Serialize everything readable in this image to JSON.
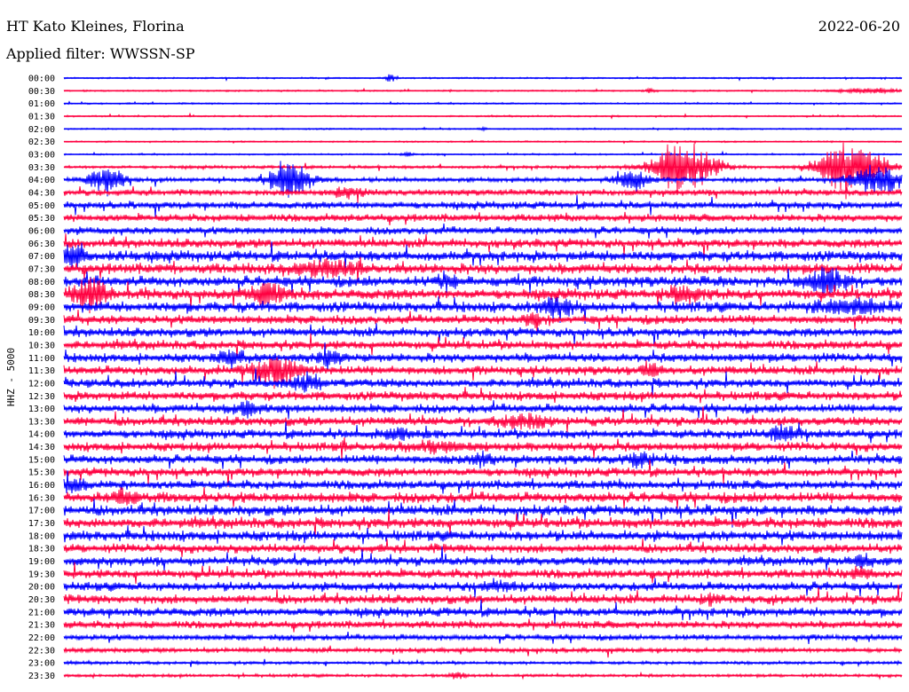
{
  "header": {
    "station": "HT Kato Kleines, Florina",
    "date": "2022-06-20",
    "filter": "Applied filter: WWSSN-SP"
  },
  "chart_data": {
    "type": "helicorder",
    "channel_label": "HHZ - 5000",
    "colors": [
      "#0000ff",
      "#ff0040"
    ],
    "rows": [
      "00:00",
      "00:30",
      "01:00",
      "01:30",
      "02:00",
      "02:30",
      "03:00",
      "03:30",
      "04:00",
      "04:30",
      "05:00",
      "05:30",
      "06:00",
      "06:30",
      "07:00",
      "07:30",
      "08:00",
      "08:30",
      "09:00",
      "09:30",
      "10:00",
      "10:30",
      "11:00",
      "11:30",
      "12:00",
      "12:30",
      "13:00",
      "13:30",
      "14:00",
      "14:30",
      "15:00",
      "15:30",
      "16:00",
      "16:30",
      "17:00",
      "17:30",
      "18:00",
      "18:30",
      "19:00",
      "19:30",
      "20:00",
      "20:30",
      "21:00",
      "21:30",
      "22:00",
      "22:30",
      "23:00",
      "23:30"
    ],
    "noise_level": [
      1,
      1,
      1,
      1,
      1,
      1,
      1,
      2,
      3,
      4,
      5,
      5,
      5,
      6,
      7,
      7,
      7,
      7,
      7,
      6,
      6,
      6,
      6,
      6,
      6,
      6,
      6,
      6,
      6,
      6,
      6,
      6,
      6,
      7,
      7,
      7,
      7,
      6,
      6,
      6,
      6,
      6,
      6,
      5,
      4,
      3,
      2,
      2
    ],
    "events": [
      {
        "row": 0,
        "t": 0.39,
        "amp": 5,
        "dur": 0.006
      },
      {
        "row": 1,
        "t": 0.7,
        "amp": 3,
        "dur": 0.005
      },
      {
        "row": 1,
        "t": 0.96,
        "amp": 3,
        "dur": 0.04
      },
      {
        "row": 4,
        "t": 0.5,
        "amp": 2,
        "dur": 0.004
      },
      {
        "row": 6,
        "t": 0.41,
        "amp": 3,
        "dur": 0.006
      },
      {
        "row": 7,
        "t": 0.74,
        "amp": 35,
        "dur": 0.035
      },
      {
        "row": 7,
        "t": 0.94,
        "amp": 38,
        "dur": 0.035
      },
      {
        "row": 8,
        "t": 0.05,
        "amp": 18,
        "dur": 0.02
      },
      {
        "row": 8,
        "t": 0.27,
        "amp": 22,
        "dur": 0.025
      },
      {
        "row": 8,
        "t": 0.68,
        "amp": 14,
        "dur": 0.02
      },
      {
        "row": 8,
        "t": 0.97,
        "amp": 20,
        "dur": 0.03
      },
      {
        "row": 9,
        "t": 0.34,
        "amp": 7,
        "dur": 0.02
      },
      {
        "row": 14,
        "t": 0.01,
        "amp": 14,
        "dur": 0.015
      },
      {
        "row": 15,
        "t": 0.31,
        "amp": 9,
        "dur": 0.03
      },
      {
        "row": 16,
        "t": 0.46,
        "amp": 12,
        "dur": 0.01
      },
      {
        "row": 16,
        "t": 0.91,
        "amp": 16,
        "dur": 0.02
      },
      {
        "row": 17,
        "t": 0.03,
        "amp": 22,
        "dur": 0.02
      },
      {
        "row": 17,
        "t": 0.24,
        "amp": 14,
        "dur": 0.02
      },
      {
        "row": 17,
        "t": 0.74,
        "amp": 8,
        "dur": 0.02
      },
      {
        "row": 18,
        "t": 0.59,
        "amp": 11,
        "dur": 0.02
      },
      {
        "row": 18,
        "t": 0.94,
        "amp": 9,
        "dur": 0.04
      },
      {
        "row": 19,
        "t": 0.56,
        "amp": 8,
        "dur": 0.01
      },
      {
        "row": 22,
        "t": 0.2,
        "amp": 9,
        "dur": 0.015
      },
      {
        "row": 22,
        "t": 0.32,
        "amp": 6,
        "dur": 0.015
      },
      {
        "row": 23,
        "t": 0.25,
        "amp": 20,
        "dur": 0.025
      },
      {
        "row": 23,
        "t": 0.7,
        "amp": 7,
        "dur": 0.01
      },
      {
        "row": 24,
        "t": 0.29,
        "amp": 11,
        "dur": 0.015
      },
      {
        "row": 26,
        "t": 0.22,
        "amp": 8,
        "dur": 0.015
      },
      {
        "row": 27,
        "t": 0.55,
        "amp": 8,
        "dur": 0.03
      },
      {
        "row": 28,
        "t": 0.4,
        "amp": 6,
        "dur": 0.02
      },
      {
        "row": 28,
        "t": 0.86,
        "amp": 8,
        "dur": 0.02
      },
      {
        "row": 29,
        "t": 0.45,
        "amp": 5,
        "dur": 0.04
      },
      {
        "row": 30,
        "t": 0.5,
        "amp": 7,
        "dur": 0.015
      },
      {
        "row": 30,
        "t": 0.69,
        "amp": 8,
        "dur": 0.015
      },
      {
        "row": 32,
        "t": 0.01,
        "amp": 6,
        "dur": 0.02
      },
      {
        "row": 33,
        "t": 0.07,
        "amp": 8,
        "dur": 0.015
      },
      {
        "row": 38,
        "t": 0.95,
        "amp": 7,
        "dur": 0.015
      },
      {
        "row": 39,
        "t": 0.95,
        "amp": 6,
        "dur": 0.01
      },
      {
        "row": 40,
        "t": 0.52,
        "amp": 6,
        "dur": 0.02
      },
      {
        "row": 41,
        "t": 0.77,
        "amp": 6,
        "dur": 0.01
      },
      {
        "row": 47,
        "t": 0.47,
        "amp": 5,
        "dur": 0.01
      }
    ]
  }
}
